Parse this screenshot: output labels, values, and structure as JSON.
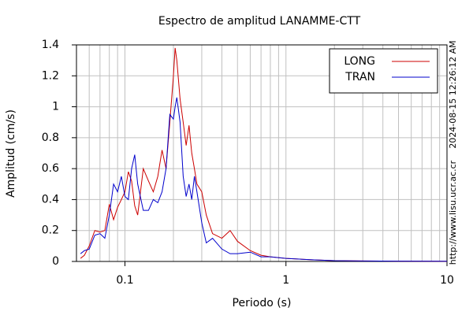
{
  "chart_data": {
    "type": "line",
    "title": "Espectro de amplitud LANAMME-CTT",
    "x_label": "Periodo (s)",
    "y_label": "Amplitud (cm/s)",
    "side_texts": [
      "2024-08-15 12:26:12 AM",
      "http://www.lisu.ucr.ac.cr"
    ],
    "x_scale": "log",
    "grid": true,
    "legend": "upper right",
    "xlim": [
      0.05,
      10
    ],
    "xticks": [
      0.1,
      1,
      10
    ],
    "xminorticks": [
      0.06,
      0.07,
      0.08,
      0.09,
      0.2,
      0.3,
      0.4,
      0.5,
      0.6,
      0.7,
      0.8,
      0.9,
      2,
      3,
      4,
      5,
      6,
      7,
      8,
      9
    ],
    "ylim": [
      0,
      1.4
    ],
    "yticks": [
      0,
      0.2,
      0.4,
      0.6,
      0.8,
      1,
      1.2,
      1.4
    ],
    "x": [
      0.053,
      0.056,
      0.06,
      0.065,
      0.07,
      0.075,
      0.08,
      0.085,
      0.09,
      0.095,
      0.1,
      0.105,
      0.11,
      0.115,
      0.12,
      0.13,
      0.14,
      0.15,
      0.16,
      0.17,
      0.18,
      0.19,
      0.2,
      0.205,
      0.21,
      0.22,
      0.23,
      0.24,
      0.25,
      0.26,
      0.27,
      0.28,
      0.3,
      0.32,
      0.35,
      0.4,
      0.45,
      0.5,
      0.6,
      0.7,
      0.8,
      1,
      1.5,
      2,
      3,
      5,
      10
    ],
    "series": [
      {
        "name": "LONG",
        "color": "#cc0000",
        "values": [
          0.02,
          0.04,
          0.1,
          0.2,
          0.19,
          0.2,
          0.37,
          0.27,
          0.35,
          0.4,
          0.45,
          0.58,
          0.52,
          0.36,
          0.3,
          0.6,
          0.52,
          0.45,
          0.55,
          0.72,
          0.6,
          0.9,
          1.2,
          1.38,
          1.3,
          1.05,
          0.9,
          0.75,
          0.88,
          0.7,
          0.6,
          0.5,
          0.45,
          0.3,
          0.18,
          0.15,
          0.2,
          0.13,
          0.07,
          0.04,
          0.03,
          0.02,
          0.01,
          0.005,
          0.003,
          0.002,
          0.001
        ]
      },
      {
        "name": "TRAN",
        "color": "#0000cc",
        "values": [
          0.05,
          0.07,
          0.08,
          0.17,
          0.18,
          0.15,
          0.3,
          0.5,
          0.45,
          0.55,
          0.42,
          0.4,
          0.6,
          0.69,
          0.5,
          0.33,
          0.33,
          0.4,
          0.38,
          0.45,
          0.6,
          0.95,
          0.92,
          1.0,
          1.06,
          0.9,
          0.55,
          0.42,
          0.5,
          0.4,
          0.55,
          0.45,
          0.25,
          0.12,
          0.15,
          0.08,
          0.05,
          0.05,
          0.06,
          0.03,
          0.03,
          0.02,
          0.01,
          0.005,
          0.003,
          0.002,
          0.001
        ]
      }
    ]
  }
}
